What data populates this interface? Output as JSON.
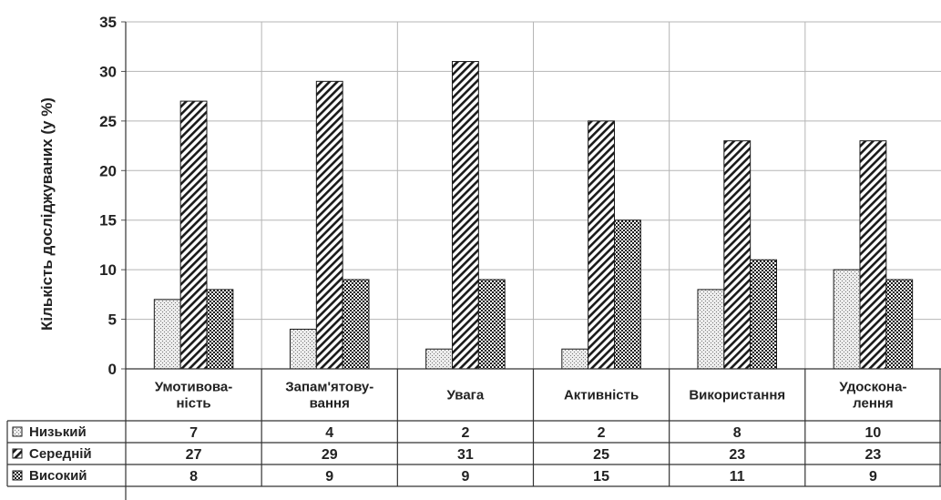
{
  "chart_data": {
    "type": "bar",
    "ylabel": "Кількість досліджуваних (у %)",
    "ylim": [
      0,
      35
    ],
    "yticks": [
      0,
      5,
      10,
      15,
      20,
      25,
      30,
      35
    ],
    "grid": true,
    "categories": [
      [
        "Умотивова-",
        "ність"
      ],
      [
        "Запам'ятову-",
        "вання"
      ],
      [
        "Увага"
      ],
      [
        "Активність"
      ],
      [
        "Використання"
      ],
      [
        "Удоскона-",
        "лення"
      ]
    ],
    "series": [
      {
        "name": "Низький",
        "values": [
          7,
          4,
          2,
          2,
          8,
          10
        ],
        "pattern": "dots"
      },
      {
        "name": "Середній",
        "values": [
          27,
          29,
          31,
          25,
          23,
          23
        ],
        "pattern": "diagonal"
      },
      {
        "name": "Високий",
        "values": [
          8,
          9,
          9,
          15,
          11,
          9
        ],
        "pattern": "checker"
      }
    ]
  }
}
